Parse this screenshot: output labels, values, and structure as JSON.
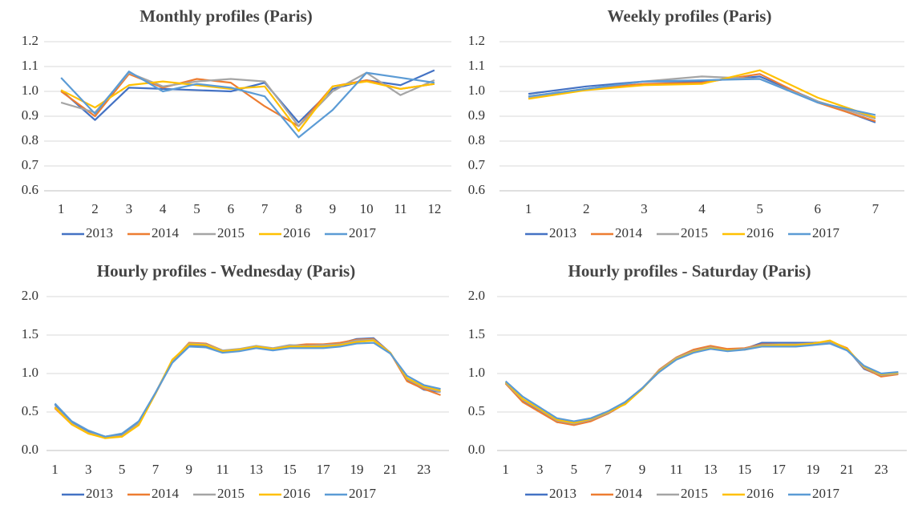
{
  "chart_data": [
    {
      "type": "line",
      "title": "Monthly profiles (Paris)",
      "categories": [
        "1",
        "2",
        "3",
        "4",
        "5",
        "6",
        "7",
        "8",
        "9",
        "10",
        "11",
        "12"
      ],
      "ylim": [
        0.6,
        1.2
      ],
      "yticks": [
        0.6,
        0.7,
        0.8,
        0.9,
        {
          "value": 1,
          "label": "1.0"
        },
        1.1,
        1.2
      ],
      "grid": true,
      "legend": "bottom",
      "series": [
        {
          "name": "2013",
          "color": "#4472c4",
          "values": [
            1.005,
            0.885,
            1.015,
            1.01,
            1.005,
            1.0,
            1.035,
            0.875,
            1.01,
            1.045,
            1.025,
            1.085
          ]
        },
        {
          "name": "2014",
          "color": "#ed7d31",
          "values": [
            1.0,
            0.9,
            1.07,
            1.015,
            1.05,
            1.035,
            0.94,
            0.86,
            1.02,
            1.045,
            1.01,
            1.03
          ]
        },
        {
          "name": "2015",
          "color": "#a5a5a5",
          "values": [
            0.955,
            0.915,
            1.075,
            1.02,
            1.04,
            1.05,
            1.04,
            0.86,
            1.0,
            1.075,
            0.985,
            1.045
          ]
        },
        {
          "name": "2016",
          "color": "#ffc000",
          "values": [
            1.005,
            0.935,
            1.025,
            1.04,
            1.025,
            1.01,
            1.02,
            0.84,
            1.02,
            1.04,
            1.01,
            1.03
          ]
        },
        {
          "name": "2017",
          "color": "#5b9bd5",
          "values": [
            1.055,
            0.91,
            1.08,
            1.0,
            1.03,
            1.015,
            0.98,
            0.815,
            0.925,
            1.075,
            1.055,
            1.035
          ]
        }
      ]
    },
    {
      "type": "line",
      "title": "Weekly profiles (Paris)",
      "categories": [
        "1",
        "2",
        "3",
        "4",
        "5",
        "6",
        "7"
      ],
      "ylim": [
        0.6,
        1.2
      ],
      "yticks": [
        0.6,
        0.7,
        0.8,
        0.9,
        {
          "value": 1,
          "label": "1.0"
        },
        1.1,
        1.2
      ],
      "grid": true,
      "legend": "bottom",
      "series": [
        {
          "name": "2013",
          "color": "#4472c4",
          "values": [
            0.99,
            1.02,
            1.04,
            1.04,
            1.06,
            0.96,
            0.875
          ]
        },
        {
          "name": "2014",
          "color": "#ed7d31",
          "values": [
            0.98,
            1.01,
            1.03,
            1.035,
            1.07,
            0.955,
            0.88
          ]
        },
        {
          "name": "2015",
          "color": "#a5a5a5",
          "values": [
            0.975,
            1.01,
            1.04,
            1.06,
            1.05,
            0.96,
            0.89
          ]
        },
        {
          "name": "2016",
          "color": "#ffc000",
          "values": [
            0.97,
            1.005,
            1.025,
            1.03,
            1.085,
            0.975,
            0.895
          ]
        },
        {
          "name": "2017",
          "color": "#5b9bd5",
          "values": [
            0.98,
            1.01,
            1.04,
            1.045,
            1.05,
            0.955,
            0.905
          ]
        }
      ]
    },
    {
      "type": "line",
      "title": "Hourly profiles - Wednesday (Paris)",
      "categories": [
        "1",
        null,
        "3",
        null,
        "5",
        null,
        "7",
        null,
        "9",
        null,
        "11",
        null,
        "13",
        null,
        "15",
        null,
        "17",
        null,
        "19",
        null,
        "21",
        null,
        "23",
        null
      ],
      "ylim": [
        0,
        2
      ],
      "yticks": [
        {
          "value": 0,
          "label": "0.0"
        },
        0.5,
        {
          "value": 1,
          "label": "1.0"
        },
        1.5,
        {
          "value": 2,
          "label": "2.0"
        }
      ],
      "grid": true,
      "legend": "bottom",
      "series": [
        {
          "name": "2013",
          "color": "#4472c4",
          "values": [
            0.6,
            0.37,
            0.25,
            0.18,
            0.21,
            0.37,
            0.75,
            1.15,
            1.36,
            1.36,
            1.28,
            1.3,
            1.34,
            1.31,
            1.36,
            1.37,
            1.36,
            1.39,
            1.45,
            1.46,
            1.27,
            0.92,
            0.79,
            0.76
          ]
        },
        {
          "name": "2014",
          "color": "#ed7d31",
          "values": [
            0.55,
            0.34,
            0.22,
            0.17,
            0.18,
            0.34,
            0.74,
            1.16,
            1.4,
            1.39,
            1.3,
            1.31,
            1.35,
            1.32,
            1.36,
            1.38,
            1.38,
            1.4,
            1.44,
            1.45,
            1.27,
            0.9,
            0.8,
            0.72
          ]
        },
        {
          "name": "2015",
          "color": "#a5a5a5",
          "values": [
            0.57,
            0.35,
            0.23,
            0.17,
            0.19,
            0.35,
            0.75,
            1.17,
            1.39,
            1.38,
            1.3,
            1.32,
            1.36,
            1.33,
            1.37,
            1.36,
            1.37,
            1.38,
            1.43,
            1.44,
            1.27,
            0.93,
            0.82,
            0.76
          ]
        },
        {
          "name": "2016",
          "color": "#ffc000",
          "values": [
            0.56,
            0.34,
            0.22,
            0.16,
            0.18,
            0.33,
            0.74,
            1.18,
            1.38,
            1.37,
            1.29,
            1.31,
            1.35,
            1.32,
            1.35,
            1.35,
            1.35,
            1.37,
            1.41,
            1.43,
            1.27,
            0.94,
            0.83,
            0.78
          ]
        },
        {
          "name": "2017",
          "color": "#5b9bd5",
          "values": [
            0.61,
            0.38,
            0.26,
            0.18,
            0.22,
            0.38,
            0.75,
            1.14,
            1.35,
            1.34,
            1.27,
            1.29,
            1.33,
            1.3,
            1.33,
            1.33,
            1.33,
            1.35,
            1.39,
            1.4,
            1.26,
            0.97,
            0.85,
            0.8
          ]
        }
      ]
    },
    {
      "type": "line",
      "title": "Hourly profiles - Saturday (Paris)",
      "categories": [
        "1",
        null,
        "3",
        null,
        "5",
        null,
        "7",
        null,
        "9",
        null,
        "11",
        null,
        "13",
        null,
        "15",
        null,
        "17",
        null,
        "19",
        null,
        "21",
        null,
        "23",
        null
      ],
      "ylim": [
        0,
        2
      ],
      "yticks": [
        {
          "value": 0,
          "label": "0.0"
        },
        0.5,
        {
          "value": 1,
          "label": "1.0"
        },
        1.5,
        {
          "value": 2,
          "label": "2.0"
        }
      ],
      "grid": true,
      "legend": "bottom",
      "series": [
        {
          "name": "2013",
          "color": "#4472c4",
          "values": [
            0.88,
            0.65,
            0.52,
            0.37,
            0.34,
            0.39,
            0.48,
            0.61,
            0.8,
            1.04,
            1.19,
            1.3,
            1.35,
            1.31,
            1.32,
            1.4,
            1.4,
            1.4,
            1.4,
            1.41,
            1.32,
            1.06,
            0.97,
            1.0
          ]
        },
        {
          "name": "2014",
          "color": "#ed7d31",
          "values": [
            0.87,
            0.63,
            0.5,
            0.37,
            0.33,
            0.38,
            0.48,
            0.61,
            0.8,
            1.05,
            1.21,
            1.31,
            1.36,
            1.32,
            1.33,
            1.38,
            1.38,
            1.38,
            1.39,
            1.42,
            1.33,
            1.07,
            0.96,
            0.99
          ]
        },
        {
          "name": "2015",
          "color": "#a5a5a5",
          "values": [
            0.88,
            0.66,
            0.53,
            0.39,
            0.35,
            0.4,
            0.49,
            0.62,
            0.81,
            1.04,
            1.2,
            1.29,
            1.34,
            1.3,
            1.32,
            1.37,
            1.38,
            1.38,
            1.39,
            1.41,
            1.31,
            1.08,
            0.98,
            1.0
          ]
        },
        {
          "name": "2016",
          "color": "#ffc000",
          "values": [
            0.89,
            0.67,
            0.54,
            0.4,
            0.36,
            0.41,
            0.5,
            0.6,
            0.8,
            1.03,
            1.19,
            1.28,
            1.33,
            1.3,
            1.31,
            1.36,
            1.37,
            1.37,
            1.39,
            1.43,
            1.32,
            1.09,
            0.99,
            1.01
          ]
        },
        {
          "name": "2017",
          "color": "#5b9bd5",
          "values": [
            0.9,
            0.7,
            0.56,
            0.42,
            0.38,
            0.42,
            0.51,
            0.63,
            0.81,
            1.02,
            1.18,
            1.27,
            1.32,
            1.29,
            1.31,
            1.35,
            1.35,
            1.35,
            1.37,
            1.39,
            1.3,
            1.1,
            1.0,
            1.02
          ]
        }
      ]
    }
  ]
}
